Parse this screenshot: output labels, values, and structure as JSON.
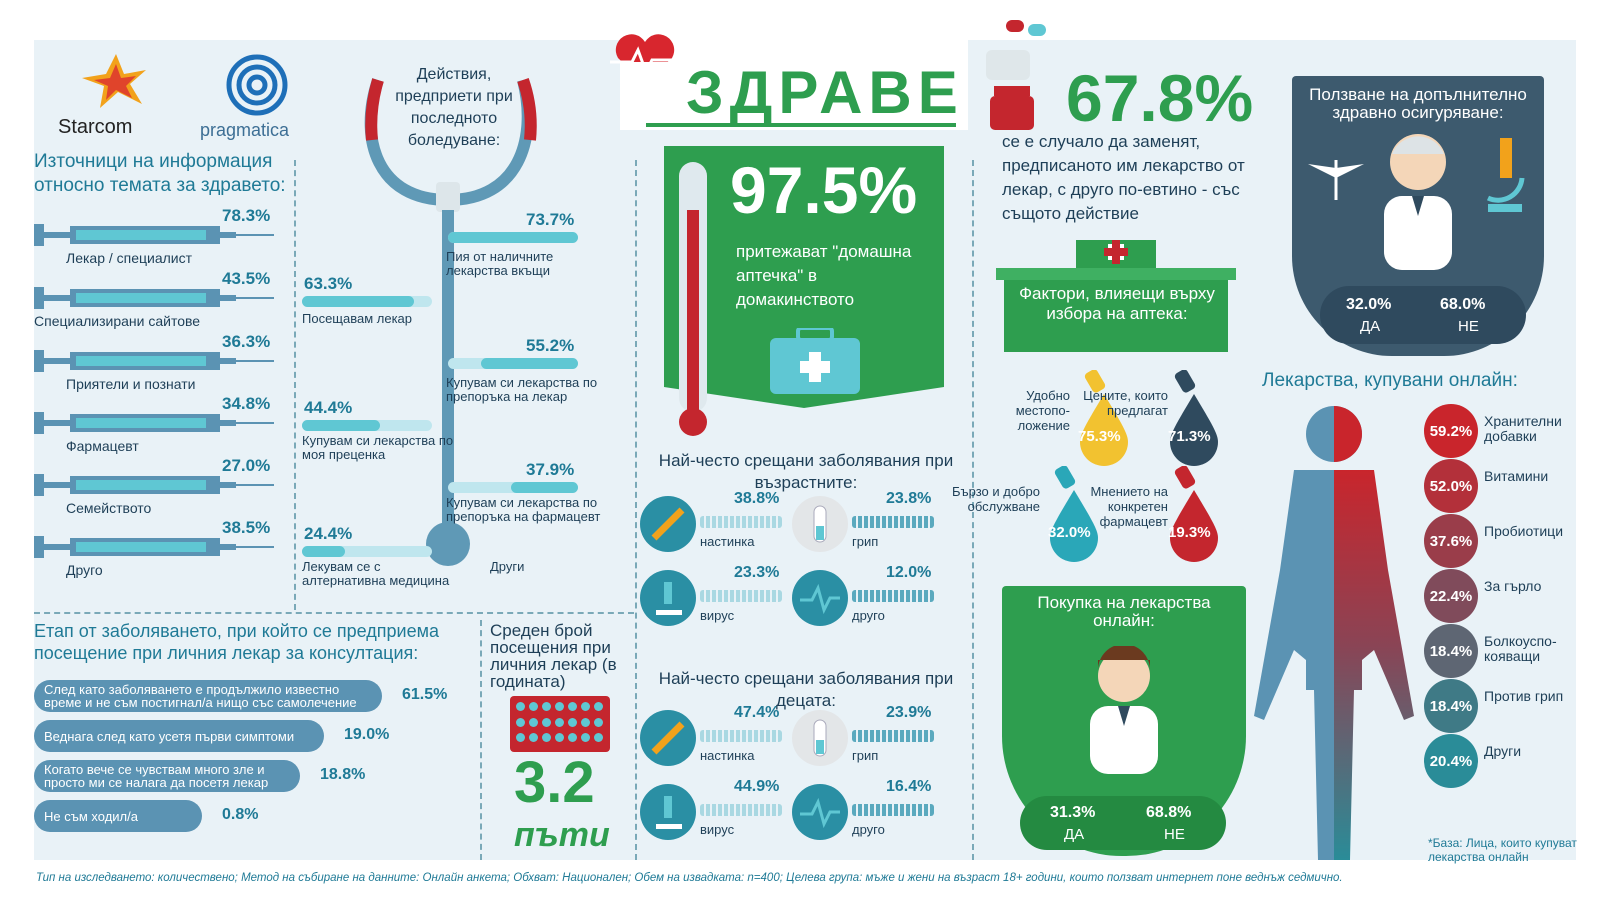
{
  "brand": {
    "starcom": "Starcom",
    "pragmatica": "pragmatica"
  },
  "title": "ЗДРАВЕ",
  "sources": {
    "heading": "Източници на информация относно темата за здравето:",
    "items": [
      {
        "label": "Лекар / специалист",
        "value": "78.3%"
      },
      {
        "label": "Специализирани сайтове",
        "value": "43.5%"
      },
      {
        "label": "Приятели и познати",
        "value": "36.3%"
      },
      {
        "label": "Фармацевт",
        "value": "34.8%"
      },
      {
        "label": "Семейството",
        "value": "27.0%"
      },
      {
        "label": "Друго",
        "value": "38.5%"
      }
    ]
  },
  "actions": {
    "heading": "Действия, предприети при последното боледуване:",
    "items": [
      {
        "label": "Пия от наличните лекарства вкъщи",
        "value": "73.7%",
        "frac": 0.737
      },
      {
        "label": "Посещавам лекар",
        "value": "63.3%",
        "frac": 0.633
      },
      {
        "label": "Купувам си лекарства по препоръка на лекар",
        "value": "55.2%",
        "frac": 0.552
      },
      {
        "label": "Купувам си лекарства по моя преценка",
        "value": "44.4%",
        "frac": 0.444
      },
      {
        "label": "Купувам си лекарства по препоръка на фармацевт",
        "value": "37.9%",
        "frac": 0.379
      },
      {
        "label": "Лекувам се с алтернативна медицина",
        "value": "24.4%",
        "frac": 0.244
      },
      {
        "label": "Други",
        "value": ""
      }
    ]
  },
  "stage": {
    "heading": "Етап от заболяването, при който се предприема посещение при личния лекар за консултация:",
    "items": [
      {
        "label": "След като заболяването е продължило известно време и не съм постигнал/а нищо със самолечение",
        "value": "61.5%"
      },
      {
        "label": "Веднага след като усетя първи симптоми",
        "value": "19.0%"
      },
      {
        "label": "Когато вече се чувствам много зле и просто ми се налага да посетя лекар",
        "value": "18.8%"
      },
      {
        "label": "Не съм ходил/а",
        "value": "0.8%"
      }
    ]
  },
  "visits": {
    "heading": "Среден брой посещения при личния лекар (в годината)",
    "value": "3.2",
    "unit": "пъти"
  },
  "kit": {
    "value": "97.5%",
    "text": "притежават \"домашна аптечка\" в домакинството"
  },
  "adult_diseases": {
    "heading": "Най-често срещани заболявания при възрастните:",
    "items": [
      {
        "label": "настинка",
        "value": "38.8%",
        "icon": "syringe-icon"
      },
      {
        "label": "грип",
        "value": "23.8%",
        "icon": "test-tube-icon"
      },
      {
        "label": "вирус",
        "value": "23.3%",
        "icon": "microscope-icon"
      },
      {
        "label": "друго",
        "value": "12.0%",
        "icon": "heartbeat-icon"
      }
    ]
  },
  "child_diseases": {
    "heading": "Най-често срещани заболявания при децата:",
    "items": [
      {
        "label": "настинка",
        "value": "47.4%",
        "icon": "syringe-icon"
      },
      {
        "label": "грип",
        "value": "23.9%",
        "icon": "test-tube-icon"
      },
      {
        "label": "вирус",
        "value": "44.9%",
        "icon": "microscope-icon"
      },
      {
        "label": "друго",
        "value": "16.4%",
        "icon": "heartbeat-icon"
      }
    ]
  },
  "substitute": {
    "value": "67.8%",
    "text": "се е случало да заменят, предписаното им лекарство от лекар, с друго по-евтино - със същото действие"
  },
  "pharmacy": {
    "heading": "Фактори, влияещи върху избора на аптека:",
    "items": [
      {
        "label": "Удобно местопо-ложение",
        "value": "75.3%",
        "color": "#f2c230"
      },
      {
        "label": "Цените, които предлагат",
        "value": "71.3%",
        "color": "#2f4a5e"
      },
      {
        "label": "Бързо и добро обслужване",
        "value": "32.0%",
        "color": "#2aa7b8"
      },
      {
        "label": "Мнението на конкретен фармацевт",
        "value": "19.3%",
        "color": "#c4262e"
      }
    ]
  },
  "insurance": {
    "heading": "Ползване на допълнително здравно осигуряване:",
    "yes": "32.0%",
    "yes_label": "ДА",
    "no": "68.0%",
    "no_label": "НЕ"
  },
  "online_purchase": {
    "heading": "Покупка на лекарства онлайн:",
    "yes": "31.3%",
    "yes_label": "ДА",
    "no": "68.8%",
    "no_label": "НЕ"
  },
  "online_meds": {
    "heading": "Лекарства, купувани онлайн:",
    "items": [
      {
        "label": "Хранителни добавки",
        "value": "59.2%",
        "color": "#c9252c"
      },
      {
        "label": "Витамини",
        "value": "52.0%",
        "color": "#b3303a"
      },
      {
        "label": "Пробиотици",
        "value": "37.6%",
        "color": "#9a3d4a"
      },
      {
        "label": "За гърло",
        "value": "22.4%",
        "color": "#804b5b"
      },
      {
        "label": "Болкоуспо-кояващи",
        "value": "18.4%",
        "color": "#5e6673"
      },
      {
        "label": "Против грип",
        "value": "18.4%",
        "color": "#3f7a86"
      },
      {
        "label": "Други",
        "value": "20.4%",
        "color": "#2a8c98"
      }
    ],
    "footnote": "*База: Лица, които купуват лекарства онлайн"
  },
  "footer": "Тип на изследването: количествено; Метод на събиране на данните: Онлайн анкета; Обхват: Национален; Обем на извадката: n=400; Целева група: мъже и жени на възраст 18+ години, които ползват интернет поне веднъж седмично.",
  "colors": {
    "green": "#2e9e4f",
    "teal": "#1f7a96",
    "red": "#c4262e",
    "bg": "#e9f2f7"
  }
}
